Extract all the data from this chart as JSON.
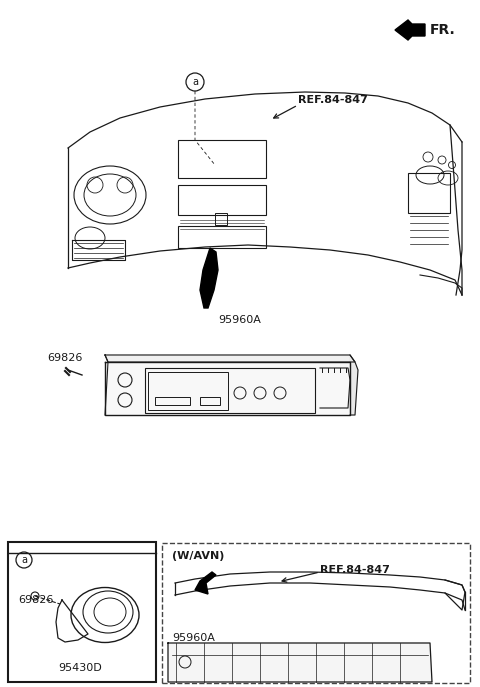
{
  "bg_color": "#ffffff",
  "line_color": "#1a1a1a",
  "text_color": "#1a1a1a",
  "fr_label": "FR.",
  "ref_label_1": "REF.84-847",
  "ref_label_2": "REF.84-847",
  "label_95960A_1": "95960A",
  "label_95960A_2": "95960A",
  "label_69826_1": "69826",
  "label_69826_2": "69826",
  "label_95430D": "95430D",
  "label_wavN": "(W/AVN)",
  "label_a": "a",
  "fig_width": 4.8,
  "fig_height": 6.87,
  "dpi": 100
}
